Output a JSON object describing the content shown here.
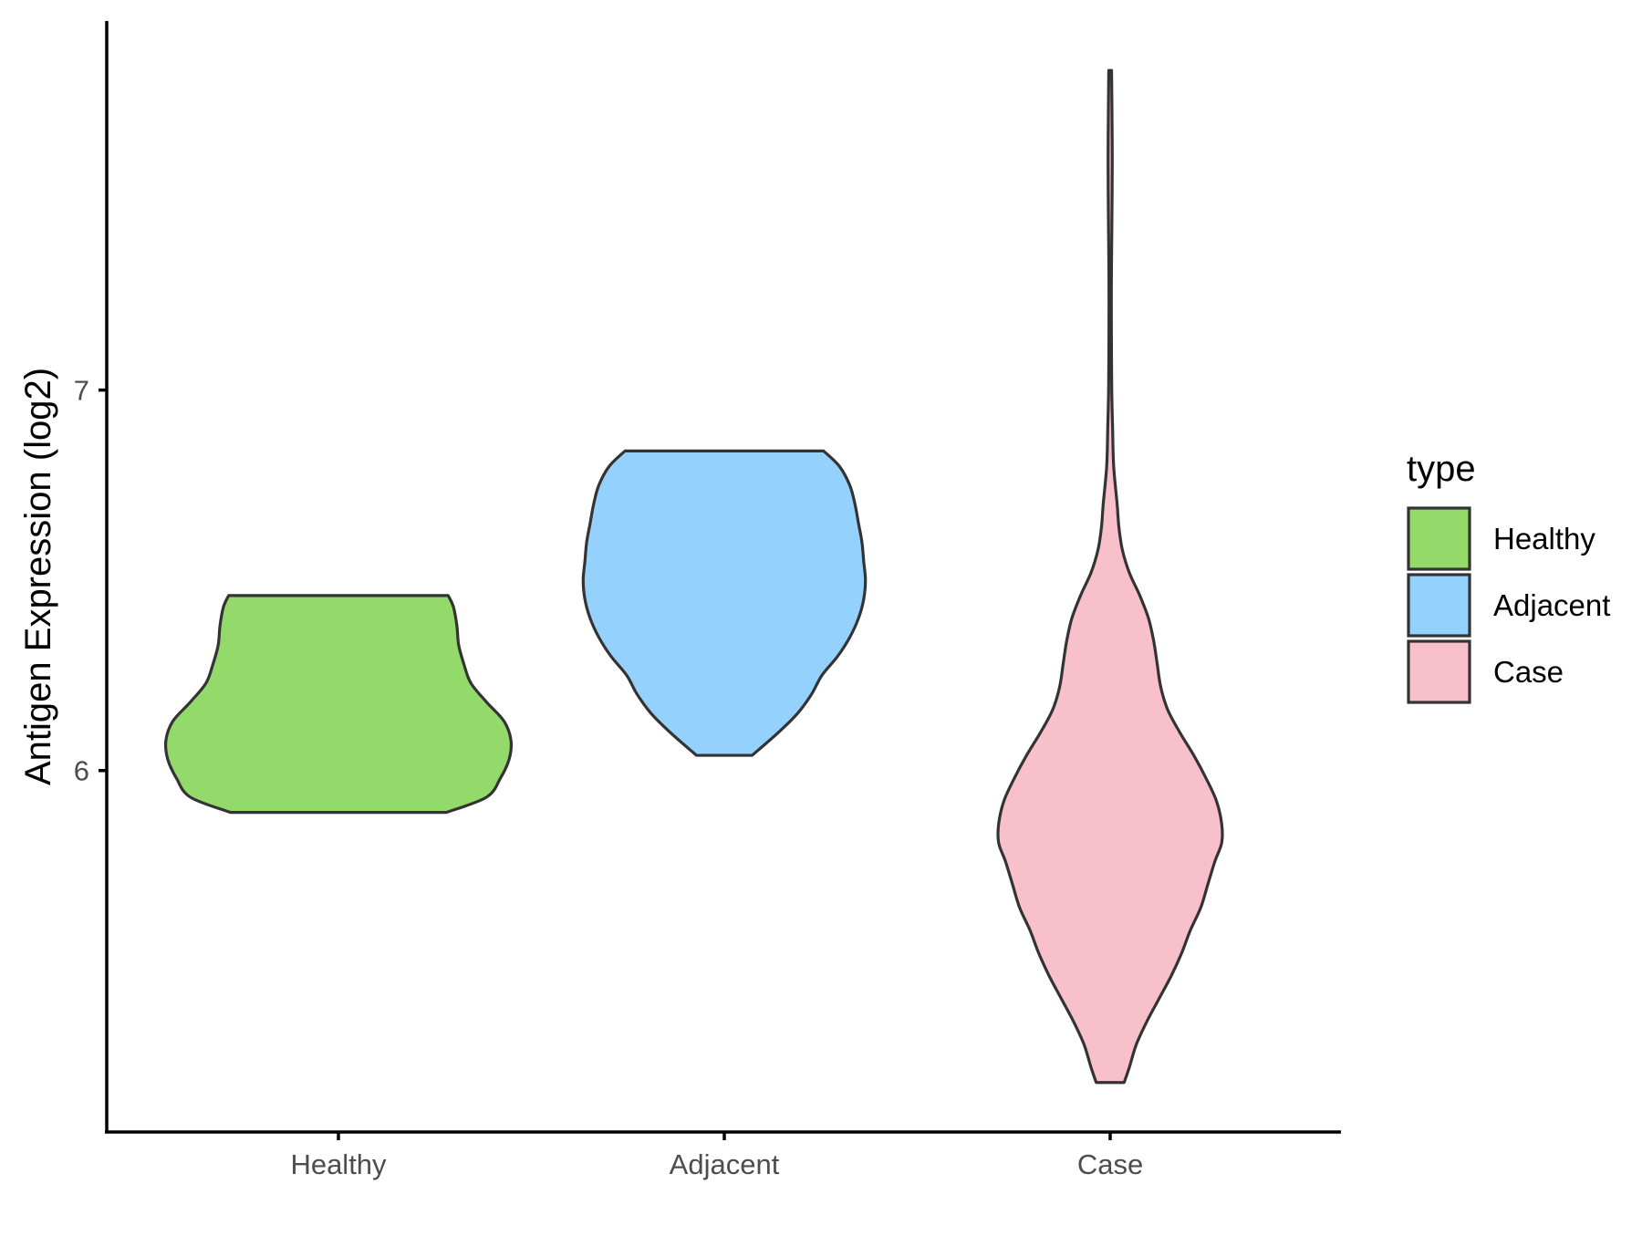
{
  "chart_data": {
    "type": "violin",
    "title": "",
    "xlabel": "",
    "ylabel": "Antigen Expression (log2)",
    "categories": [
      "Healthy",
      "Adjacent",
      "Case"
    ],
    "y_ticks": [
      6,
      7
    ],
    "ylim": [
      5.05,
      7.97
    ],
    "grid": false,
    "legend": {
      "title": "type",
      "position": "right",
      "entries": [
        "Healthy",
        "Adjacent",
        "Case"
      ]
    },
    "colors": {
      "Healthy": "#93DA6A",
      "Adjacent": "#94D2FD",
      "Case": "#F7C0CB"
    },
    "series": [
      {
        "name": "Healthy",
        "min": 5.89,
        "max": 6.46,
        "density_profile": [
          [
            5.89,
            0.62
          ],
          [
            5.93,
            0.85
          ],
          [
            5.98,
            0.93
          ],
          [
            6.03,
            0.98
          ],
          [
            6.08,
            0.99
          ],
          [
            6.13,
            0.95
          ],
          [
            6.18,
            0.85
          ],
          [
            6.23,
            0.76
          ],
          [
            6.28,
            0.72
          ],
          [
            6.33,
            0.69
          ],
          [
            6.38,
            0.68
          ],
          [
            6.43,
            0.66
          ],
          [
            6.46,
            0.63
          ]
        ]
      },
      {
        "name": "Adjacent",
        "min": 6.04,
        "max": 6.84,
        "density_profile": [
          [
            6.04,
            0.16
          ],
          [
            6.1,
            0.31
          ],
          [
            6.15,
            0.42
          ],
          [
            6.2,
            0.5
          ],
          [
            6.25,
            0.56
          ],
          [
            6.3,
            0.65
          ],
          [
            6.35,
            0.72
          ],
          [
            6.4,
            0.77
          ],
          [
            6.45,
            0.8
          ],
          [
            6.5,
            0.81
          ],
          [
            6.55,
            0.8
          ],
          [
            6.6,
            0.79
          ],
          [
            6.65,
            0.77
          ],
          [
            6.7,
            0.75
          ],
          [
            6.75,
            0.72
          ],
          [
            6.8,
            0.66
          ],
          [
            6.84,
            0.57
          ]
        ]
      },
      {
        "name": "Case",
        "min": 5.18,
        "max": 7.84,
        "density_profile": [
          [
            5.18,
            0.08
          ],
          [
            5.22,
            0.11
          ],
          [
            5.28,
            0.15
          ],
          [
            5.34,
            0.21
          ],
          [
            5.4,
            0.28
          ],
          [
            5.46,
            0.35
          ],
          [
            5.52,
            0.41
          ],
          [
            5.58,
            0.46
          ],
          [
            5.64,
            0.52
          ],
          [
            5.7,
            0.56
          ],
          [
            5.76,
            0.6
          ],
          [
            5.81,
            0.64
          ],
          [
            5.86,
            0.64
          ],
          [
            5.92,
            0.61
          ],
          [
            5.98,
            0.55
          ],
          [
            6.04,
            0.48
          ],
          [
            6.1,
            0.4
          ],
          [
            6.16,
            0.33
          ],
          [
            6.22,
            0.29
          ],
          [
            6.28,
            0.27
          ],
          [
            6.34,
            0.25
          ],
          [
            6.4,
            0.22
          ],
          [
            6.46,
            0.17
          ],
          [
            6.52,
            0.11
          ],
          [
            6.58,
            0.07
          ],
          [
            6.64,
            0.05
          ],
          [
            6.7,
            0.04
          ],
          [
            6.8,
            0.02
          ],
          [
            6.9,
            0.014
          ],
          [
            7.0,
            0.009
          ],
          [
            7.15,
            0.007
          ],
          [
            7.3,
            0.007
          ],
          [
            7.45,
            0.01
          ],
          [
            7.6,
            0.012
          ],
          [
            7.75,
            0.01
          ],
          [
            7.84,
            0.008
          ]
        ]
      }
    ]
  }
}
